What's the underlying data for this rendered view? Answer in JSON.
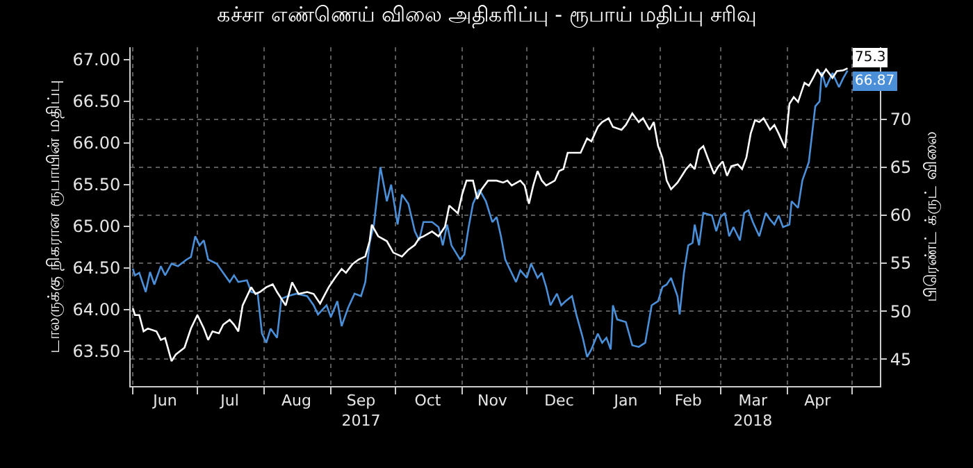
{
  "chart_data": {
    "type": "line",
    "title": "கச்சா எண்ணெய் விலை அதிகரிப்பு - ரூபாய் மதிப்பு சரிவு",
    "ylabel": "டாலருக்கு நிகரான ரூபாயின் மதிப்பு",
    "y2label": "பிரெண்ட் க்ருட் விலை",
    "xlim": [
      "2017-05-31",
      "2018-05-14"
    ],
    "xticks": [
      {
        "value": "2017-06-16",
        "label": "Jun"
      },
      {
        "value": "2017-07-16",
        "label": "Jul"
      },
      {
        "value": "2017-08-16",
        "label": "Aug"
      },
      {
        "value": "2017-09-15",
        "label": "Sep\n2017"
      },
      {
        "value": "2017-10-16",
        "label": "Oct"
      },
      {
        "value": "2017-11-15",
        "label": "Nov"
      },
      {
        "value": "2017-12-16",
        "label": "Dec"
      },
      {
        "value": "2018-01-16",
        "label": "Jan"
      },
      {
        "value": "2018-02-14",
        "label": "Feb"
      },
      {
        "value": "2018-03-16",
        "label": "Mar\n2018"
      },
      {
        "value": "2018-04-15",
        "label": "Apr"
      },
      {
        "value": "2017-06-01",
        "label": null
      },
      {
        "value": "2017-07-01",
        "label": null
      },
      {
        "value": "2017-08-01",
        "label": null
      },
      {
        "value": "2017-09-01",
        "label": null
      },
      {
        "value": "2017-10-01",
        "label": null
      },
      {
        "value": "2017-11-01",
        "label": null
      },
      {
        "value": "2017-12-01",
        "label": null
      },
      {
        "value": "2018-01-01",
        "label": null
      },
      {
        "value": "2018-02-01",
        "label": null
      },
      {
        "value": "2018-03-01",
        "label": null
      },
      {
        "value": "2018-04-01",
        "label": null
      },
      {
        "value": "2018-05-01",
        "label": null
      }
    ],
    "ylim": [
      63.08,
      67.15
    ],
    "yticks": [
      {
        "value": 63.5,
        "label": "63.50"
      },
      {
        "value": 64.0,
        "label": "64.00"
      },
      {
        "value": 64.5,
        "label": "64.50"
      },
      {
        "value": 65.0,
        "label": "65.00"
      },
      {
        "value": 65.5,
        "label": "65.50"
      },
      {
        "value": 66.0,
        "label": "66.00"
      },
      {
        "value": 66.5,
        "label": "66.50"
      },
      {
        "value": 67.0,
        "label": "67.00"
      }
    ],
    "y2lim": [
      42.2,
      77.5
    ],
    "y2ticks": [
      45,
      50,
      55,
      60,
      65,
      70
    ],
    "grid": true,
    "marker": "none",
    "line_style": "solid",
    "series": [
      {
        "color": "#4a8fd8",
        "axis": "y",
        "x": [
          "2017-06-01",
          "2017-06-02",
          "2017-06-04",
          "2017-06-07",
          "2017-06-09",
          "2017-06-11",
          "2017-06-14",
          "2017-06-16",
          "2017-06-19",
          "2017-06-22",
          "2017-06-26",
          "2017-06-28",
          "2017-06-30",
          "2017-07-02",
          "2017-07-04",
          "2017-07-06",
          "2017-07-10",
          "2017-07-13",
          "2017-07-16",
          "2017-07-18",
          "2017-07-20",
          "2017-07-24",
          "2017-07-26",
          "2017-07-29",
          "2017-07-31",
          "2017-08-02",
          "2017-08-04",
          "2017-08-07",
          "2017-08-09",
          "2017-08-12",
          "2017-08-16",
          "2017-08-21",
          "2017-08-24",
          "2017-08-26",
          "2017-08-30",
          "2017-09-01",
          "2017-09-04",
          "2017-09-06",
          "2017-09-09",
          "2017-09-12",
          "2017-09-15",
          "2017-09-17",
          "2017-09-19",
          "2017-09-21",
          "2017-09-24",
          "2017-09-27",
          "2017-09-29",
          "2017-10-02",
          "2017-10-04",
          "2017-10-07",
          "2017-10-10",
          "2017-10-12",
          "2017-10-14",
          "2017-10-18",
          "2017-10-21",
          "2017-10-23",
          "2017-10-25",
          "2017-10-27",
          "2017-10-31",
          "2017-11-02",
          "2017-11-04",
          "2017-11-06",
          "2017-11-09",
          "2017-11-12",
          "2017-11-15",
          "2017-11-17",
          "2017-11-19",
          "2017-11-21",
          "2017-11-23",
          "2017-11-26",
          "2017-11-28",
          "2017-12-01",
          "2017-12-03",
          "2017-12-06",
          "2017-12-08",
          "2017-12-10",
          "2017-12-12",
          "2017-12-15",
          "2017-12-17",
          "2017-12-19",
          "2017-12-22",
          "2017-12-24",
          "2017-12-27",
          "2017-12-29",
          "2017-12-31",
          "2018-01-03",
          "2018-01-05",
          "2018-01-07",
          "2018-01-09",
          "2018-01-10",
          "2018-01-12",
          "2018-01-16",
          "2018-01-19",
          "2018-01-22",
          "2018-01-25",
          "2018-01-28",
          "2018-01-31",
          "2018-02-02",
          "2018-02-04",
          "2018-02-06",
          "2018-02-09",
          "2018-02-10",
          "2018-02-12",
          "2018-02-14",
          "2018-02-16",
          "2018-02-17",
          "2018-02-19",
          "2018-02-21",
          "2018-02-25",
          "2018-02-27",
          "2018-03-01",
          "2018-03-03",
          "2018-03-05",
          "2018-03-07",
          "2018-03-10",
          "2018-03-12",
          "2018-03-14",
          "2018-03-16",
          "2018-03-19",
          "2018-03-22",
          "2018-03-24",
          "2018-03-26",
          "2018-03-28",
          "2018-03-30",
          "2018-04-02",
          "2018-04-03",
          "2018-04-06",
          "2018-04-08",
          "2018-04-11",
          "2018-04-14",
          "2018-04-16",
          "2018-04-17",
          "2018-04-19",
          "2018-04-22",
          "2018-04-25",
          "2018-04-27",
          "2018-04-29"
        ],
        "values": [
          64.49,
          64.41,
          64.44,
          64.21,
          64.45,
          64.3,
          64.52,
          64.41,
          64.55,
          64.52,
          64.6,
          64.63,
          64.88,
          64.77,
          64.83,
          64.6,
          64.55,
          64.44,
          64.33,
          64.41,
          64.33,
          64.35,
          64.21,
          64.19,
          63.71,
          63.6,
          63.77,
          63.66,
          64.13,
          64.16,
          64.19,
          64.16,
          64.05,
          63.94,
          64.05,
          63.91,
          64.1,
          63.8,
          64.02,
          64.19,
          64.16,
          64.33,
          64.8,
          65.02,
          65.71,
          65.3,
          65.5,
          65.02,
          65.38,
          65.27,
          64.94,
          64.83,
          65.05,
          65.05,
          64.99,
          64.77,
          65.02,
          64.77,
          64.6,
          64.66,
          64.99,
          65.27,
          65.44,
          65.3,
          65.05,
          65.11,
          64.88,
          64.6,
          64.49,
          64.33,
          64.47,
          64.38,
          64.55,
          64.38,
          64.44,
          64.27,
          64.05,
          64.19,
          64.05,
          64.1,
          64.16,
          63.94,
          63.66,
          63.43,
          63.52,
          63.71,
          63.6,
          63.66,
          63.52,
          64.05,
          63.88,
          63.85,
          63.57,
          63.55,
          63.6,
          64.05,
          64.1,
          64.27,
          64.3,
          64.38,
          64.16,
          63.94,
          64.44,
          64.77,
          64.8,
          65.02,
          64.77,
          65.16,
          65.13,
          64.94,
          65.11,
          65.16,
          64.88,
          64.99,
          64.83,
          65.16,
          65.19,
          65.05,
          64.88,
          65.16,
          65.08,
          65.02,
          65.13,
          64.99,
          65.02,
          65.3,
          65.22,
          65.55,
          65.77,
          66.44,
          66.5,
          66.85,
          66.67,
          66.84,
          66.67,
          66.78,
          66.87
        ],
        "value_labels": [
          null,
          null,
          null,
          null,
          null,
          null,
          null,
          null,
          null,
          null,
          null,
          null,
          null,
          null,
          null,
          null,
          null,
          null,
          null,
          null,
          null,
          null,
          null,
          null,
          null,
          null,
          null,
          null,
          null,
          null,
          null,
          null,
          null,
          null,
          null,
          null,
          null,
          null,
          null,
          null,
          null,
          null,
          null,
          null,
          null,
          null,
          null,
          null,
          null,
          null,
          null,
          null,
          null,
          null,
          null,
          null,
          null,
          null,
          null,
          null,
          null,
          null,
          null,
          null,
          null,
          null,
          null,
          null,
          null,
          null,
          null,
          null,
          null,
          null,
          null,
          null,
          null,
          null,
          null,
          null,
          null,
          null,
          null,
          null,
          null,
          null,
          null,
          null,
          null,
          null,
          null,
          null,
          null,
          null,
          null,
          null,
          null,
          null,
          null,
          null,
          null,
          null,
          null,
          null,
          null,
          null,
          null,
          null,
          null,
          null,
          null,
          null,
          null,
          null,
          null,
          null,
          null,
          null,
          null,
          null,
          null,
          null,
          null,
          null,
          null,
          null,
          null,
          null,
          null,
          null,
          null,
          null,
          null,
          null,
          null,
          null,
          "66.87"
        ]
      },
      {
        "color": "#ffffff",
        "axis": "y2",
        "x": [
          "2017-06-01",
          "2017-06-02",
          "2017-06-04",
          "2017-06-06",
          "2017-06-08",
          "2017-06-12",
          "2017-06-14",
          "2017-06-16",
          "2017-06-19",
          "2017-06-21",
          "2017-06-25",
          "2017-06-28",
          "2017-07-01",
          "2017-07-04",
          "2017-07-06",
          "2017-07-08",
          "2017-07-11",
          "2017-07-13",
          "2017-07-16",
          "2017-07-18",
          "2017-07-20",
          "2017-07-22",
          "2017-07-26",
          "2017-07-28",
          "2017-07-30",
          "2017-08-02",
          "2017-08-05",
          "2017-08-07",
          "2017-08-11",
          "2017-08-14",
          "2017-08-17",
          "2017-08-21",
          "2017-08-24",
          "2017-08-27",
          "2017-08-31",
          "2017-09-03",
          "2017-09-06",
          "2017-09-08",
          "2017-09-11",
          "2017-09-14",
          "2017-09-17",
          "2017-09-19",
          "2017-09-20",
          "2017-09-23",
          "2017-09-27",
          "2017-09-30",
          "2017-10-04",
          "2017-10-07",
          "2017-10-10",
          "2017-10-12",
          "2017-10-14",
          "2017-10-18",
          "2017-10-21",
          "2017-10-24",
          "2017-10-26",
          "2017-10-30",
          "2017-11-01",
          "2017-11-03",
          "2017-11-06",
          "2017-11-08",
          "2017-11-10",
          "2017-11-13",
          "2017-11-17",
          "2017-11-20",
          "2017-11-22",
          "2017-11-24",
          "2017-11-28",
          "2017-11-30",
          "2017-12-02",
          "2017-12-04",
          "2017-12-06",
          "2017-12-08",
          "2017-12-10",
          "2017-12-14",
          "2017-12-16",
          "2017-12-18",
          "2017-12-20",
          "2017-12-22",
          "2017-12-26",
          "2017-12-29",
          "2017-12-31",
          "2018-01-03",
          "2018-01-05",
          "2018-01-08",
          "2018-01-10",
          "2018-01-14",
          "2018-01-16",
          "2018-01-19",
          "2018-01-22",
          "2018-01-24",
          "2018-01-27",
          "2018-01-29",
          "2018-01-31",
          "2018-02-02",
          "2018-02-04",
          "2018-02-06",
          "2018-02-09",
          "2018-02-11",
          "2018-02-13",
          "2018-02-15",
          "2018-02-17",
          "2018-02-19",
          "2018-02-21",
          "2018-02-23",
          "2018-02-26",
          "2018-02-28",
          "2018-03-02",
          "2018-03-04",
          "2018-03-06",
          "2018-03-09",
          "2018-03-11",
          "2018-03-13",
          "2018-03-15",
          "2018-03-17",
          "2018-03-19",
          "2018-03-21",
          "2018-03-24",
          "2018-03-26",
          "2018-03-28",
          "2018-03-31",
          "2018-04-02",
          "2018-04-04",
          "2018-04-06",
          "2018-04-09",
          "2018-04-11",
          "2018-04-13",
          "2018-04-15",
          "2018-04-17",
          "2018-04-19",
          "2018-04-22",
          "2018-04-24",
          "2018-04-27",
          "2018-04-29"
        ],
        "values": [
          50.3,
          49.6,
          49.6,
          47.9,
          48.2,
          47.9,
          47.0,
          47.2,
          44.8,
          45.5,
          46.2,
          48.2,
          49.6,
          48.2,
          47.0,
          47.9,
          47.7,
          48.6,
          49.1,
          48.6,
          47.9,
          50.6,
          52.5,
          51.8,
          52.0,
          52.5,
          52.8,
          52.0,
          50.6,
          53.0,
          51.8,
          52.0,
          51.8,
          50.8,
          52.5,
          53.5,
          54.4,
          54.0,
          54.9,
          55.4,
          55.7,
          57.3,
          59.0,
          57.8,
          57.3,
          56.1,
          55.7,
          56.4,
          56.9,
          57.6,
          57.8,
          58.3,
          57.8,
          58.8,
          61.0,
          60.2,
          62.2,
          63.6,
          63.6,
          61.7,
          62.7,
          63.6,
          63.6,
          63.4,
          63.6,
          63.1,
          63.6,
          63.1,
          61.2,
          63.1,
          64.6,
          63.6,
          63.1,
          63.6,
          64.6,
          64.8,
          66.5,
          66.5,
          66.5,
          68.0,
          67.7,
          69.2,
          69.7,
          70.1,
          69.2,
          68.9,
          69.4,
          70.6,
          69.7,
          70.1,
          68.9,
          69.7,
          67.2,
          66.0,
          63.6,
          62.7,
          63.4,
          64.1,
          64.8,
          65.3,
          64.8,
          66.8,
          67.2,
          66.0,
          64.3,
          65.1,
          65.6,
          64.1,
          65.1,
          65.3,
          64.8,
          66.0,
          68.5,
          69.9,
          69.7,
          70.1,
          68.9,
          69.4,
          68.5,
          67.0,
          71.6,
          72.3,
          71.8,
          73.8,
          73.5,
          74.3,
          75.2,
          74.5,
          75.2,
          74.3,
          75.0,
          75.1,
          75.3
        ],
        "value_labels": [
          null,
          null,
          null,
          null,
          null,
          null,
          null,
          null,
          null,
          null,
          null,
          null,
          null,
          null,
          null,
          null,
          null,
          null,
          null,
          null,
          null,
          null,
          null,
          null,
          null,
          null,
          null,
          null,
          null,
          null,
          null,
          null,
          null,
          null,
          null,
          null,
          null,
          null,
          null,
          null,
          null,
          null,
          null,
          null,
          null,
          null,
          null,
          null,
          null,
          null,
          null,
          null,
          null,
          null,
          null,
          null,
          null,
          null,
          null,
          null,
          null,
          null,
          null,
          null,
          null,
          null,
          null,
          null,
          null,
          null,
          null,
          null,
          null,
          null,
          null,
          null,
          null,
          null,
          null,
          null,
          null,
          null,
          null,
          null,
          null,
          null,
          null,
          null,
          null,
          null,
          null,
          null,
          null,
          null,
          null,
          null,
          null,
          null,
          null,
          null,
          null,
          null,
          null,
          null,
          null,
          null,
          null,
          null,
          null,
          null,
          null,
          null,
          null,
          null,
          null,
          null,
          null,
          null,
          null,
          null,
          null,
          null,
          null,
          null,
          null,
          null,
          null,
          null,
          null,
          null,
          null,
          null,
          "75.3"
        ]
      }
    ]
  }
}
